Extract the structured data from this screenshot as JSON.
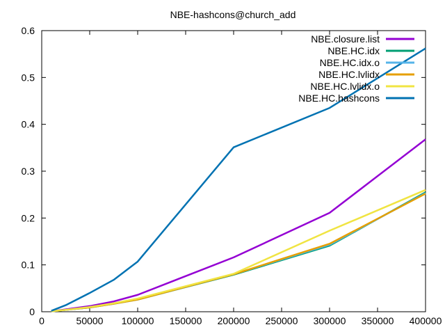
{
  "chart_data": {
    "type": "line",
    "title": "NBE-hashcons@church_add",
    "xlabel": "",
    "ylabel": "",
    "xlim": [
      0,
      400000
    ],
    "ylim": [
      0,
      0.6
    ],
    "x_ticks": [
      0,
      50000,
      100000,
      150000,
      200000,
      250000,
      300000,
      350000,
      400000
    ],
    "x_tick_labels": [
      "0",
      "50000",
      "100000",
      "150000",
      "200000",
      "250000",
      "300000",
      "350000",
      "400000"
    ],
    "y_ticks": [
      0,
      0.1,
      0.2,
      0.3,
      0.4,
      0.5,
      0.6
    ],
    "y_tick_labels": [
      "0",
      "0.1",
      "0.2",
      "0.3",
      "0.4",
      "0.5",
      "0.6"
    ],
    "grid": false,
    "legend_position": "top-right",
    "x": [
      10000,
      25000,
      50000,
      75000,
      100000,
      200000,
      300000,
      400000
    ],
    "series": [
      {
        "name": "NBE.closure.list",
        "color": "#9400d3",
        "values": [
          0.001,
          0.005,
          0.012,
          0.022,
          0.036,
          0.116,
          0.211,
          0.368
        ]
      },
      {
        "name": "NBE.HC.idx",
        "color": "#009e73",
        "values": [
          0.001,
          0.004,
          0.009,
          0.017,
          0.026,
          0.079,
          0.141,
          0.255
        ]
      },
      {
        "name": "NBE.HC.idx.o",
        "color": "#56b4e9",
        "values": [
          0.001,
          0.004,
          0.009,
          0.017,
          0.026,
          0.08,
          0.143,
          0.253
        ]
      },
      {
        "name": "NBE.HC.lvlidx",
        "color": "#e69f00",
        "values": [
          0.001,
          0.004,
          0.009,
          0.017,
          0.026,
          0.08,
          0.145,
          0.252
        ]
      },
      {
        "name": "NBE.HC.lvlidx.o",
        "color": "#f0e442",
        "values": [
          0.001,
          0.004,
          0.01,
          0.018,
          0.028,
          0.081,
          0.173,
          0.26
        ]
      },
      {
        "name": "NBE.HC.hashcons",
        "color": "#0072b2",
        "values": [
          0.002,
          0.014,
          0.04,
          0.068,
          0.107,
          0.351,
          0.435,
          0.562
        ]
      }
    ]
  }
}
